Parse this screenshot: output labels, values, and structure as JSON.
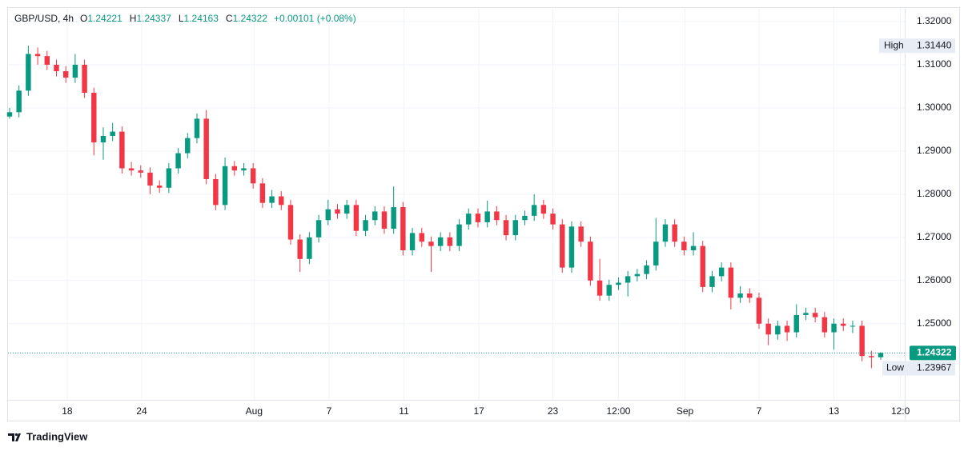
{
  "chart_data": {
    "type": "candlestick",
    "legend": {
      "symbol": "GBP/USD, 4h",
      "items": [
        {
          "key": "O",
          "value": "1.24221"
        },
        {
          "key": "H",
          "value": "1.24337"
        },
        {
          "key": "L",
          "value": "1.24163"
        },
        {
          "key": "C",
          "value": "1.24322"
        }
      ],
      "change": "+0.00101 (+0.08%)"
    },
    "up_color": "#089981",
    "down_color": "#f23645",
    "ohlc": {
      "open": [
        1.298,
        1.299,
        1.304,
        1.3125,
        1.312,
        1.31,
        1.3085,
        1.307,
        1.31,
        1.3035,
        1.292,
        1.2935,
        1.2945,
        1.286,
        1.2855,
        1.285,
        1.282,
        1.2815,
        1.286,
        1.2895,
        1.293,
        1.2975,
        1.2835,
        1.2775,
        1.2865,
        1.2855,
        1.286,
        1.2825,
        1.278,
        1.2795,
        1.2775,
        1.2695,
        1.265,
        1.27,
        1.274,
        1.2765,
        1.2755,
        1.2775,
        1.2715,
        1.274,
        1.276,
        1.272,
        1.277,
        1.267,
        1.271,
        1.269,
        1.268,
        1.27,
        1.268,
        1.273,
        1.2755,
        1.2735,
        1.276,
        1.274,
        1.2705,
        1.274,
        1.275,
        1.2775,
        1.2755,
        1.273,
        1.263,
        1.2725,
        1.269,
        1.26,
        1.2565,
        1.259,
        1.2595,
        1.261,
        1.2615,
        1.2635,
        1.269,
        1.273,
        1.269,
        1.267,
        1.268,
        1.2585,
        1.261,
        1.263,
        1.256,
        1.257,
        1.256,
        1.25,
        1.2475,
        1.2495,
        1.248,
        1.252,
        1.2525,
        1.2515,
        1.248,
        1.25,
        1.2495,
        1.2495,
        1.2425,
        1.24221
      ],
      "high": [
        1.3,
        1.3052,
        1.3144,
        1.314,
        1.3132,
        1.3112,
        1.3097,
        1.3125,
        1.3112,
        1.3047,
        1.2955,
        1.2965,
        1.2957,
        1.2875,
        1.2867,
        1.2862,
        1.2832,
        1.2872,
        1.2907,
        1.2942,
        1.2987,
        1.2995,
        1.2847,
        1.2885,
        1.2877,
        1.2872,
        1.2872,
        1.2837,
        1.281,
        1.2807,
        1.2787,
        1.2707,
        1.2712,
        1.2752,
        1.2787,
        1.2777,
        1.2787,
        1.2787,
        1.2752,
        1.2772,
        1.2772,
        1.2818,
        1.2782,
        1.2722,
        1.2722,
        1.2702,
        1.2712,
        1.2712,
        1.2742,
        1.2767,
        1.2767,
        1.2785,
        1.2772,
        1.2752,
        1.2752,
        1.2762,
        1.28,
        1.2787,
        1.2767,
        1.2742,
        1.2737,
        1.2737,
        1.2702,
        1.265,
        1.2602,
        1.2607,
        1.2622,
        1.2627,
        1.2647,
        1.2745,
        1.2742,
        1.2742,
        1.2702,
        1.2712,
        1.2692,
        1.2622,
        1.2642,
        1.2642,
        1.2587,
        1.2582,
        1.2572,
        1.2512,
        1.2507,
        1.2507,
        1.2545,
        1.2537,
        1.2537,
        1.2527,
        1.2512,
        1.2512,
        1.2507,
        1.2507,
        1.2437,
        1.24337
      ],
      "low": [
        1.2975,
        1.2978,
        1.3028,
        1.31,
        1.3088,
        1.3073,
        1.3058,
        1.3058,
        1.3023,
        1.289,
        1.288,
        1.2923,
        1.2848,
        1.2843,
        1.2838,
        1.28,
        1.2803,
        1.2803,
        1.2848,
        1.2883,
        1.2918,
        1.2823,
        1.2763,
        1.2763,
        1.2843,
        1.2843,
        1.2813,
        1.2768,
        1.2768,
        1.2763,
        1.2683,
        1.262,
        1.2638,
        1.2688,
        1.2728,
        1.2743,
        1.2743,
        1.2703,
        1.2703,
        1.2728,
        1.2708,
        1.2708,
        1.2658,
        1.2658,
        1.2678,
        1.262,
        1.2668,
        1.2668,
        1.2668,
        1.2718,
        1.2723,
        1.2723,
        1.2728,
        1.2693,
        1.2693,
        1.2728,
        1.2738,
        1.2743,
        1.2718,
        1.2618,
        1.2618,
        1.2678,
        1.2588,
        1.2553,
        1.2553,
        1.2578,
        1.2563,
        1.2598,
        1.2603,
        1.2623,
        1.2678,
        1.2678,
        1.2658,
        1.2658,
        1.2573,
        1.2573,
        1.2598,
        1.2533,
        1.2548,
        1.2548,
        1.2488,
        1.245,
        1.2463,
        1.246,
        1.2468,
        1.2508,
        1.2503,
        1.2468,
        1.244,
        1.2483,
        1.2478,
        1.2413,
        1.23967,
        1.24163
      ],
      "close": [
        1.299,
        1.304,
        1.3125,
        1.312,
        1.31,
        1.3085,
        1.307,
        1.31,
        1.3035,
        1.292,
        1.2935,
        1.2945,
        1.286,
        1.2855,
        1.285,
        1.282,
        1.2815,
        1.286,
        1.2895,
        1.293,
        1.2975,
        1.2835,
        1.2775,
        1.2865,
        1.2855,
        1.286,
        1.2825,
        1.278,
        1.2795,
        1.2775,
        1.2695,
        1.265,
        1.27,
        1.274,
        1.2765,
        1.2755,
        1.2775,
        1.2715,
        1.274,
        1.276,
        1.272,
        1.277,
        1.267,
        1.271,
        1.269,
        1.268,
        1.27,
        1.268,
        1.273,
        1.2755,
        1.2735,
        1.276,
        1.274,
        1.2705,
        1.274,
        1.275,
        1.2775,
        1.2755,
        1.273,
        1.263,
        1.2725,
        1.269,
        1.26,
        1.2565,
        1.259,
        1.2595,
        1.261,
        1.2615,
        1.2635,
        1.269,
        1.273,
        1.269,
        1.267,
        1.268,
        1.2585,
        1.261,
        1.263,
        1.256,
        1.257,
        1.256,
        1.25,
        1.2475,
        1.2495,
        1.248,
        1.252,
        1.2525,
        1.2515,
        1.248,
        1.25,
        1.2495,
        1.2495,
        1.2425,
        1.2422,
        1.24322
      ]
    },
    "xlim": [
      -0.17,
      95.56
    ],
    "xticks": [
      {
        "value": 6.15,
        "label": "18"
      },
      {
        "value": 14.1,
        "label": "24"
      },
      {
        "value": 26.1,
        "label": "Aug"
      },
      {
        "value": 34.1,
        "label": "7"
      },
      {
        "value": 42.1,
        "label": "11"
      },
      {
        "value": 50.1,
        "label": "17"
      },
      {
        "value": 58.0,
        "label": "23"
      },
      {
        "value": 65.0,
        "label": "12:00"
      },
      {
        "value": 72.1,
        "label": "Sep"
      },
      {
        "value": 80.0,
        "label": "7"
      },
      {
        "value": 88.0,
        "label": "13"
      },
      {
        "value": 95.1,
        "label": "12:0"
      }
    ],
    "ylim": [
      1.23235,
      1.32315
    ],
    "yticks": [
      {
        "value": 1.25,
        "label": "1.25000"
      },
      {
        "value": 1.26,
        "label": "1.26000"
      },
      {
        "value": 1.27,
        "label": "1.27000"
      },
      {
        "value": 1.28,
        "label": "1.28000"
      },
      {
        "value": 1.29,
        "label": "1.29000"
      },
      {
        "value": 1.3,
        "label": "1.30000"
      },
      {
        "value": 1.31,
        "label": "1.31000"
      },
      {
        "value": 1.32,
        "label": "1.32000"
      }
    ],
    "grid": true,
    "price_markers": [
      {
        "label": "High",
        "value": {
          "value": 1.3144,
          "label": "1.31440"
        }
      },
      {
        "label": "Low",
        "value": {
          "value": 1.23967,
          "label": "1.23967"
        }
      }
    ],
    "last_price": {
      "value": 1.24322,
      "label": "1.24322"
    }
  },
  "footer": {
    "brand": "TradingView"
  }
}
